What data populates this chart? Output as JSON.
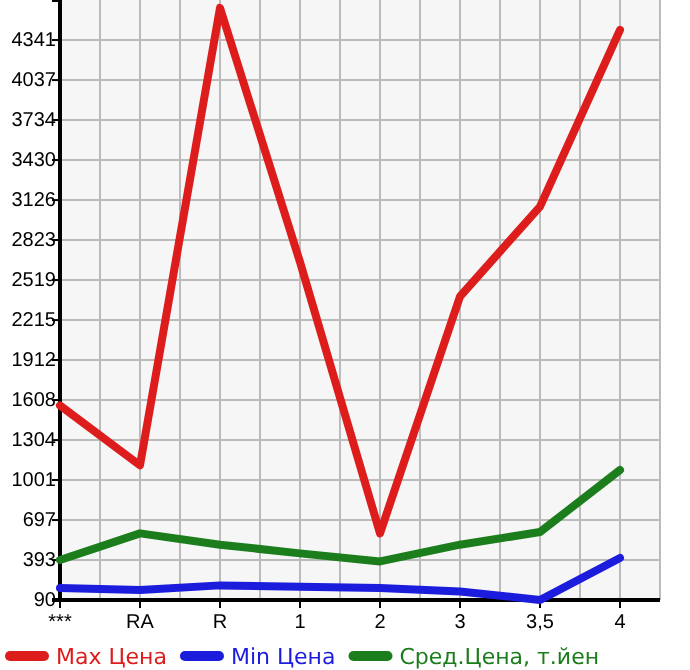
{
  "chart_data": {
    "type": "line",
    "categories": [
      "***",
      "RA",
      "R",
      "1",
      "2",
      "3",
      "3,5",
      "4"
    ],
    "series": [
      {
        "name": "Max Цена",
        "color": "#dd1c1c",
        "values": [
          1567,
          1112,
          4585,
          2656,
          596,
          2394,
          3077,
          4418
        ]
      },
      {
        "name": "Min Цена",
        "color": "#1c1cdd",
        "values": [
          181,
          166,
          201,
          191,
          181,
          155,
          90,
          409
        ]
      },
      {
        "name": "Сред.Цена, т.йен",
        "color": "#1c7d1c",
        "values": [
          394,
          596,
          510,
          444,
          383,
          510,
          606,
          1077
        ]
      }
    ],
    "ylim": [
      90,
      4645
    ],
    "yticks": [
      90,
      393,
      697,
      1001,
      1304,
      1608,
      1912,
      2215,
      2519,
      2823,
      3126,
      3430,
      3734,
      4037,
      4341
    ],
    "grid": true,
    "legend": "bottom",
    "marker": "none",
    "line_style": "solid"
  }
}
